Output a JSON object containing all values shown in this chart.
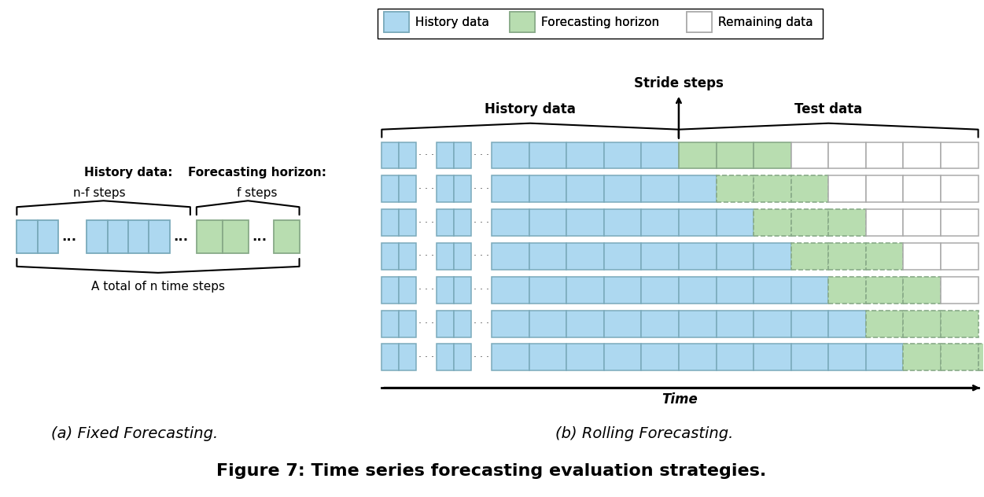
{
  "title": "Figure 7: Time series forecasting evaluation strategies.",
  "subtitle_a": "(a) Fixed Forecasting.",
  "subtitle_b": "(b) Rolling Forecasting.",
  "legend_items": [
    "History data",
    "Forecasting horizon",
    "Remaining data"
  ],
  "legend_colors": [
    "#ADD8F0",
    "#B8DDB0",
    "#FFFFFF"
  ],
  "blue_color": "#ADD8F0",
  "green_color": "#B8DDB0",
  "white_color": "#FFFFFF",
  "blue_edge": "#7AAABB",
  "green_edge": "#88AA88",
  "white_edge": "#AAAAAA",
  "dark_edge": "#555555",
  "num_rolling_rows": 7,
  "background": "#FFFFFF",
  "fig_w": 12.51,
  "fig_h": 6.32
}
